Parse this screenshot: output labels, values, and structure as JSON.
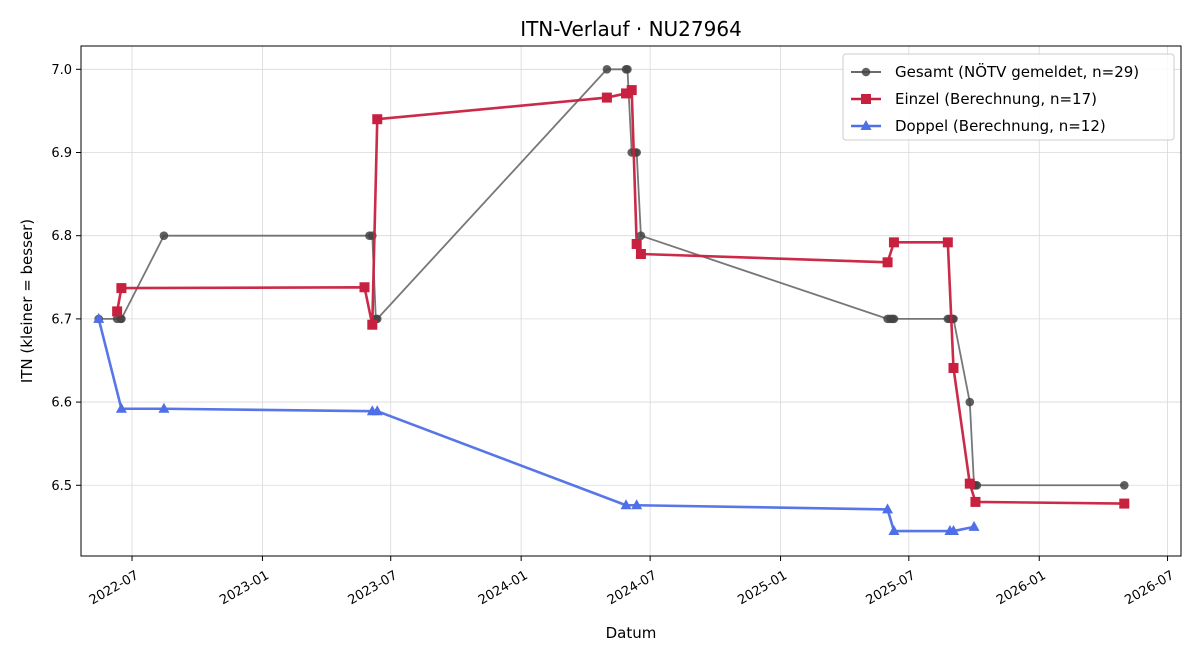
{
  "chart_data": {
    "type": "line",
    "title": "ITN-Verlauf · NU27964",
    "xlabel": "Datum",
    "ylabel": "ITN  (kleiner = besser)",
    "x_type": "date",
    "xlim": [
      "2022-04-20",
      "2026-07-20"
    ],
    "ylim": [
      6.415,
      7.028
    ],
    "x_ticks": [
      "2022-07-01",
      "2023-01-01",
      "2023-07-01",
      "2024-01-01",
      "2024-07-01",
      "2025-01-01",
      "2025-07-01",
      "2026-01-01",
      "2026-07-01"
    ],
    "x_tick_labels": [
      "2022-07",
      "2023-01",
      "2023-07",
      "2024-01",
      "2024-07",
      "2025-01",
      "2025-07",
      "2026-01",
      "2026-07"
    ],
    "y_ticks": [
      6.5,
      6.6,
      6.7,
      6.8,
      6.9,
      7.0
    ],
    "y_tick_labels": [
      "6.5",
      "6.6",
      "6.7",
      "6.8",
      "6.9",
      "7.0"
    ],
    "grid": true,
    "legend_position": "top-right",
    "series": [
      {
        "name": "Gesamt (NÖTV gemeldet, n=29)",
        "color": "#555555",
        "marker": "circle",
        "points": [
          [
            "2022-05-15",
            6.7
          ],
          [
            "2022-06-10",
            6.7
          ],
          [
            "2022-06-15",
            6.7
          ],
          [
            "2022-06-16",
            6.7
          ],
          [
            "2022-08-15",
            6.8
          ],
          [
            "2023-06-01",
            6.8
          ],
          [
            "2023-06-05",
            6.8
          ],
          [
            "2023-06-10",
            6.7
          ],
          [
            "2023-06-12",
            6.7
          ],
          [
            "2024-05-01",
            7.0
          ],
          [
            "2024-05-28",
            7.0
          ],
          [
            "2024-05-30",
            7.0
          ],
          [
            "2024-06-05",
            6.9
          ],
          [
            "2024-06-10",
            6.9
          ],
          [
            "2024-06-12",
            6.9
          ],
          [
            "2024-06-18",
            6.8
          ],
          [
            "2025-06-01",
            6.7
          ],
          [
            "2025-06-05",
            6.7
          ],
          [
            "2025-06-08",
            6.7
          ],
          [
            "2025-06-10",
            6.7
          ],
          [
            "2025-08-25",
            6.7
          ],
          [
            "2025-08-28",
            6.7
          ],
          [
            "2025-09-01",
            6.7
          ],
          [
            "2025-09-02",
            6.7
          ],
          [
            "2025-09-25",
            6.6
          ],
          [
            "2025-10-01",
            6.5
          ],
          [
            "2025-10-03",
            6.5
          ],
          [
            "2025-10-05",
            6.5
          ],
          [
            "2026-05-01",
            6.5
          ]
        ]
      },
      {
        "name": "Einzel (Berechnung, n=17)",
        "color": "#c8203f",
        "marker": "square",
        "points": [
          [
            "2022-06-10",
            6.709
          ],
          [
            "2022-06-16",
            6.737
          ],
          [
            "2023-05-25",
            6.738
          ],
          [
            "2023-06-05",
            6.693
          ],
          [
            "2023-06-12",
            6.94
          ],
          [
            "2024-05-01",
            6.966
          ],
          [
            "2024-05-28",
            6.971
          ],
          [
            "2024-06-05",
            6.975
          ],
          [
            "2024-06-12",
            6.79
          ],
          [
            "2024-06-18",
            6.778
          ],
          [
            "2025-06-01",
            6.768
          ],
          [
            "2025-06-10",
            6.792
          ],
          [
            "2025-08-25",
            6.792
          ],
          [
            "2025-09-02",
            6.641
          ],
          [
            "2025-09-25",
            6.502
          ],
          [
            "2025-10-03",
            6.48
          ],
          [
            "2026-05-01",
            6.478
          ]
        ]
      },
      {
        "name": "Doppel (Berechnung, n=12)",
        "color": "#4f6fe6",
        "marker": "triangle",
        "points": [
          [
            "2022-05-15",
            6.7
          ],
          [
            "2022-06-16",
            6.592
          ],
          [
            "2022-08-15",
            6.592
          ],
          [
            "2023-06-05",
            6.589
          ],
          [
            "2023-06-12",
            6.589
          ],
          [
            "2024-05-28",
            6.476
          ],
          [
            "2024-06-12",
            6.476
          ],
          [
            "2025-06-01",
            6.471
          ],
          [
            "2025-06-10",
            6.445
          ],
          [
            "2025-08-28",
            6.445
          ],
          [
            "2025-09-02",
            6.445
          ],
          [
            "2025-10-01",
            6.45
          ]
        ]
      }
    ]
  }
}
